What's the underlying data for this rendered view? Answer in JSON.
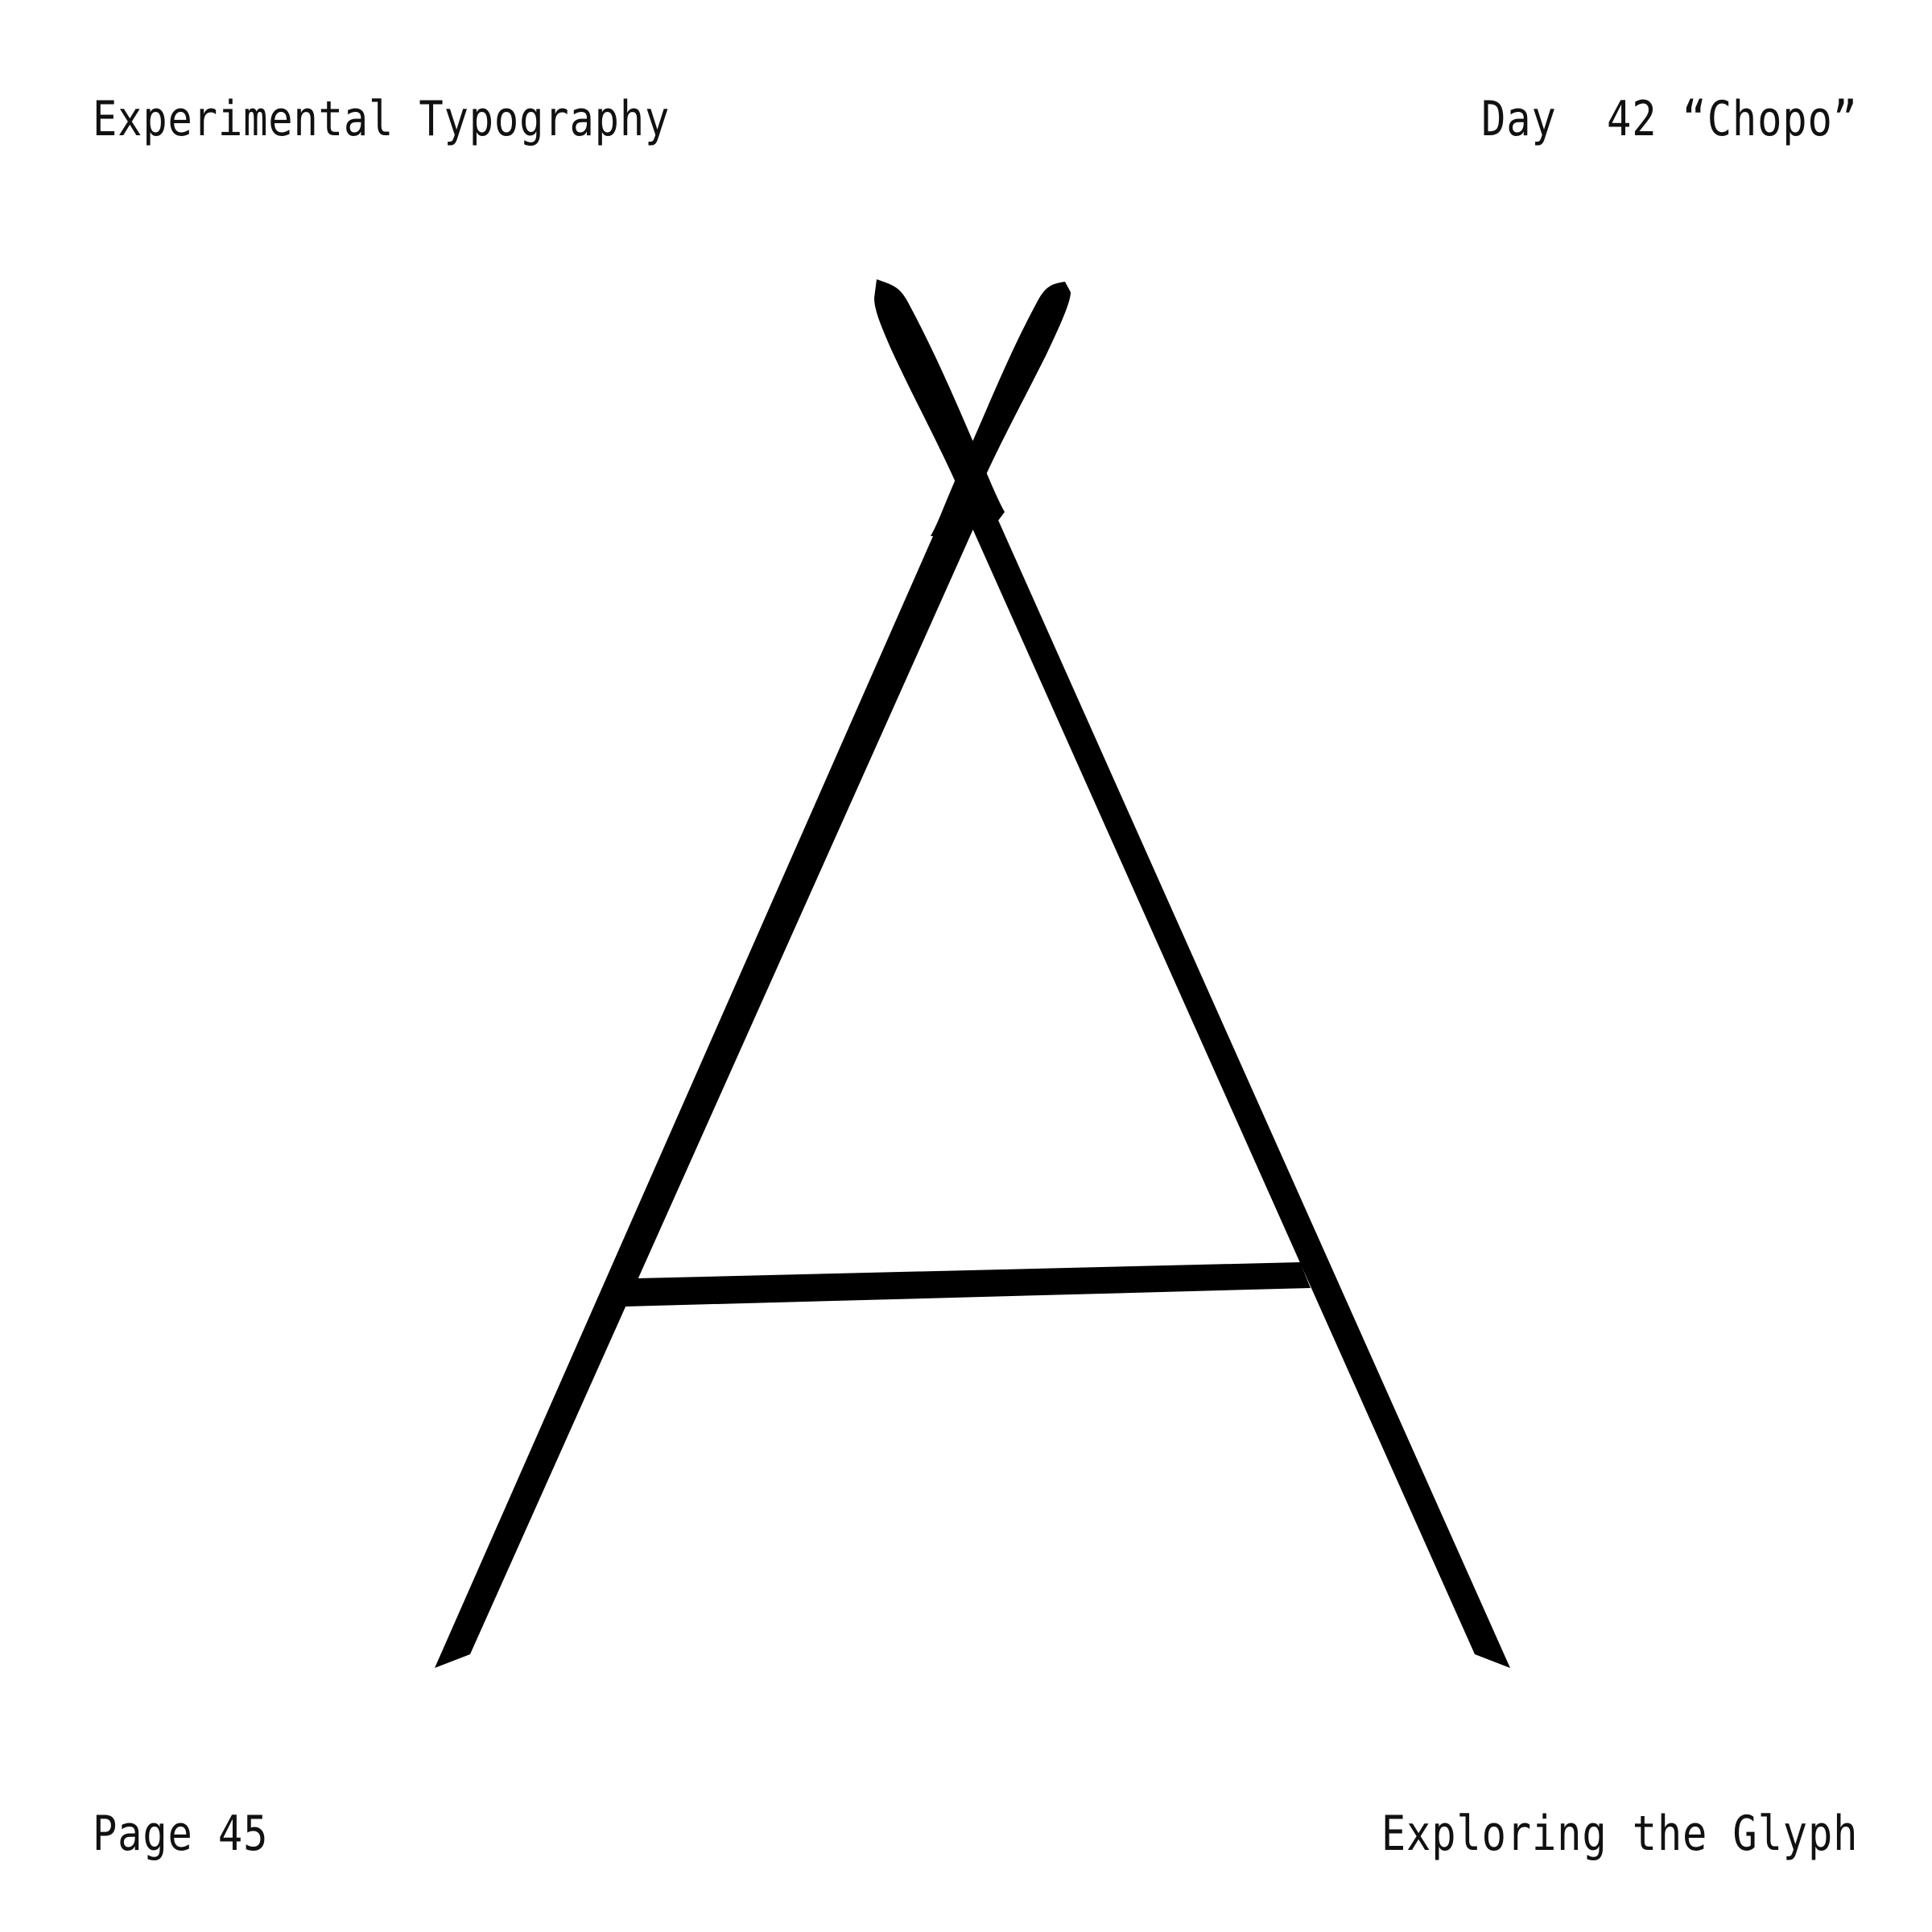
{
  "header": {
    "series_title": "Experimental Typography",
    "day_label": "Day  42 “Chopo”"
  },
  "footer": {
    "page_label": "Page 45",
    "subtitle": "Exploring the Glyph"
  },
  "artwork": {
    "glyph_icon": "letter-a-glyph-icon",
    "ink_color": "#000000",
    "background_color": "#ffffff"
  }
}
